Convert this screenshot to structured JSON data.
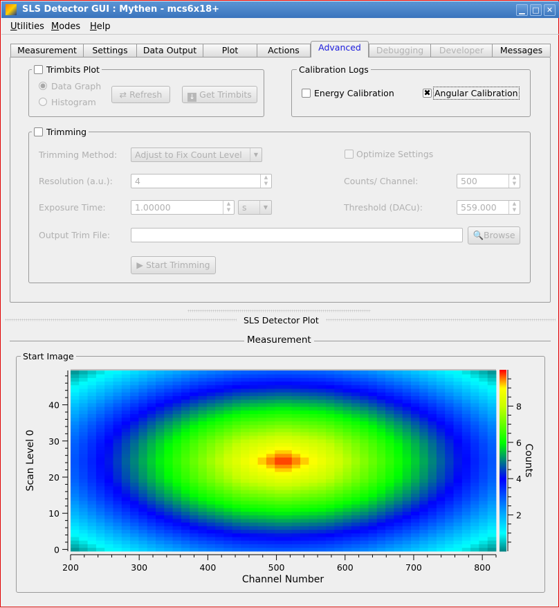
{
  "window": {
    "title": "SLS Detector GUI : Mythen - mcs6x18+",
    "controls": [
      "minimize",
      "maximize",
      "close"
    ]
  },
  "menu": [
    "Utilities",
    "Modes",
    "Help"
  ],
  "tabs": [
    {
      "label": "Measurement",
      "state": "normal"
    },
    {
      "label": "Settings",
      "state": "normal"
    },
    {
      "label": "Data Output",
      "state": "normal"
    },
    {
      "label": "Plot",
      "state": "normal"
    },
    {
      "label": "Actions",
      "state": "normal"
    },
    {
      "label": "Advanced",
      "state": "active"
    },
    {
      "label": "Debugging",
      "state": "disabled"
    },
    {
      "label": "Developer",
      "state": "disabled"
    },
    {
      "label": "Messages",
      "state": "normal"
    }
  ],
  "trimbits": {
    "title": "Trimbits Plot",
    "checked": false,
    "data_graph": "Data Graph",
    "histogram": "Histogram",
    "selected": "Data Graph",
    "refresh": "Refresh",
    "get_trimbits": "Get Trimbits"
  },
  "calibration": {
    "title": "Calibration Logs",
    "energy": "Energy Calibration",
    "energy_checked": false,
    "angular": "Angular Calibration",
    "angular_checked": true
  },
  "trimming": {
    "title": "Trimming",
    "checked": false,
    "method_label": "Trimming Method:",
    "method_value": "Adjust to Fix Count Level",
    "optimize": "Optimize Settings",
    "resolution_label": "Resolution (a.u.):",
    "resolution_value": "4",
    "counts_label": "Counts/ Channel:",
    "counts_value": "500",
    "exposure_label": "Exposure Time:",
    "exposure_value": "1.00000",
    "exposure_unit": "s",
    "threshold_label": "Threshold (DACu):",
    "threshold_value": "559.000",
    "output_label": "Output Trim File:",
    "output_value": "",
    "browse": "Browse",
    "start": "Start Trimming"
  },
  "plot_section": {
    "title": "SLS Detector Plot",
    "measurement": "Measurement",
    "group": "Start Image"
  },
  "chart_data": {
    "type": "heatmap",
    "xlabel": "Channel Number",
    "ylabel": "Scan Level 0",
    "colorbar_label": "Counts",
    "xlim": [
      200,
      820
    ],
    "ylim": [
      -0.5,
      49.5
    ],
    "zlim": [
      0,
      10
    ],
    "x_ticks": [
      200,
      300,
      400,
      500,
      600,
      700,
      800
    ],
    "y_ticks": [
      0,
      10,
      20,
      30,
      40
    ],
    "colorbar_ticks": [
      2,
      4,
      6,
      8
    ],
    "grid_cells": [
      50,
      50
    ],
    "z_sampled_rows_bottom_to_top": [
      [
        0,
        0.94,
        1.75,
        2.38,
        2.79,
        2.93,
        2.79,
        2.38,
        1.75,
        0.94,
        0
      ],
      [
        0.94,
        2.0,
        2.93,
        3.68,
        4.17,
        4.34,
        4.17,
        3.68,
        2.93,
        2.0,
        0.94
      ],
      [
        1.75,
        2.93,
        4.0,
        4.9,
        5.53,
        5.76,
        5.53,
        4.9,
        4.0,
        2.93,
        1.75
      ],
      [
        2.38,
        3.68,
        4.9,
        6.0,
        6.84,
        7.17,
        6.84,
        6.0,
        4.9,
        3.68,
        2.38
      ],
      [
        2.79,
        4.17,
        5.53,
        6.84,
        8.0,
        8.59,
        8.0,
        6.84,
        5.53,
        4.17,
        2.79
      ],
      [
        2.93,
        4.34,
        5.76,
        7.17,
        8.59,
        10,
        8.59,
        7.17,
        5.76,
        4.34,
        2.93
      ],
      [
        2.79,
        4.17,
        5.53,
        6.84,
        8.0,
        8.59,
        8.0,
        6.84,
        5.53,
        4.17,
        2.79
      ],
      [
        2.38,
        3.68,
        4.9,
        6.0,
        6.84,
        7.17,
        6.84,
        6.0,
        4.9,
        3.68,
        2.38
      ],
      [
        1.75,
        2.93,
        4.0,
        4.9,
        5.53,
        5.76,
        5.53,
        4.9,
        4.0,
        2.93,
        1.75
      ],
      [
        0.94,
        2.0,
        2.93,
        3.68,
        4.17,
        4.34,
        4.17,
        3.68,
        2.93,
        2.0,
        0.94
      ],
      [
        0,
        0.94,
        1.75,
        2.38,
        2.79,
        2.93,
        2.79,
        2.38,
        1.75,
        0.94,
        0
      ]
    ],
    "colormap": [
      [
        0,
        "#008080"
      ],
      [
        1,
        "#00ffff"
      ],
      [
        2.2,
        "#00a0ff"
      ],
      [
        4,
        "#0000ff"
      ],
      [
        5,
        "#008080"
      ],
      [
        6,
        "#00ff00"
      ],
      [
        8,
        "#c8ff00"
      ],
      [
        9,
        "#ffff00"
      ],
      [
        10,
        "#ff0000"
      ]
    ]
  }
}
